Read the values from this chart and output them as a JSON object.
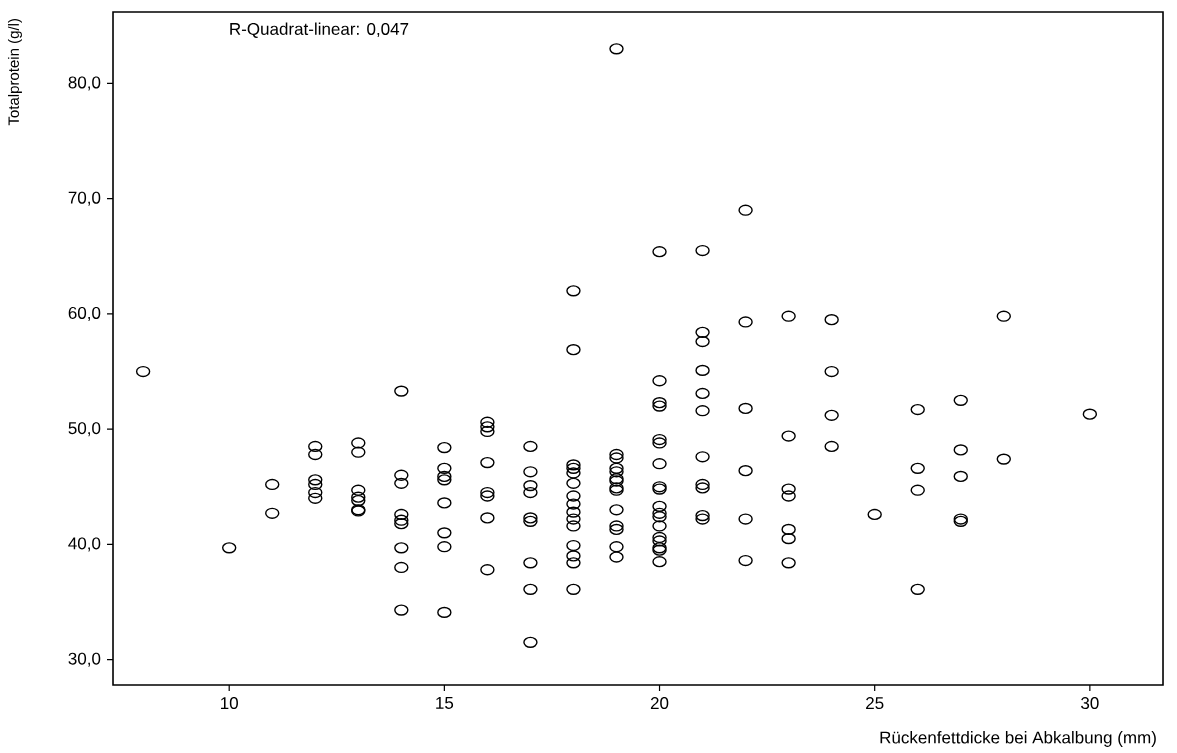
{
  "chart_data": {
    "type": "scatter",
    "xlabel": "Rückenfettdicke bei Abkalbung (mm)",
    "ylabel": "Totalprotein (g/l)",
    "annotations": [
      "R-Quadrat-linear: 0,047"
    ],
    "xlim": [
      7.3,
      31.7
    ],
    "ylim": [
      27.8,
      86.2
    ],
    "xticks": [
      10,
      15,
      20,
      25,
      30
    ],
    "yticks": [
      {
        "value": 30,
        "label": "30,0"
      },
      {
        "value": 40,
        "label": "40,0"
      },
      {
        "value": 50,
        "label": "50,0"
      },
      {
        "value": 60,
        "label": "60,0"
      },
      {
        "value": 70,
        "label": "70,0"
      },
      {
        "value": 80,
        "label": "80,0"
      }
    ],
    "marker": "circle",
    "color": "#000000",
    "x": [
      8,
      10,
      11,
      11,
      12,
      12,
      12,
      12,
      12,
      12,
      13,
      13,
      13,
      13,
      13,
      13,
      13,
      14,
      14,
      14,
      14,
      14,
      14,
      14,
      14,
      14,
      15,
      15,
      15,
      15,
      15,
      15,
      15,
      15,
      16,
      16,
      16,
      16,
      16,
      16,
      16,
      16,
      17,
      17,
      17,
      17,
      17,
      17,
      17,
      17,
      17,
      18,
      18,
      18,
      18,
      18,
      18,
      18,
      18,
      18,
      18,
      18,
      18,
      18,
      18,
      18,
      19,
      19,
      19,
      19,
      19,
      19,
      19,
      19,
      19,
      19,
      19,
      19,
      19,
      19,
      20,
      20,
      20,
      20,
      20,
      20,
      20,
      20,
      20,
      20,
      20,
      20,
      20,
      20,
      20,
      20,
      20,
      20,
      21,
      21,
      21,
      21,
      21,
      21,
      21,
      21,
      21,
      21,
      21,
      22,
      22,
      22,
      22,
      22,
      22,
      23,
      23,
      23,
      23,
      23,
      23,
      23,
      24,
      24,
      24,
      24,
      25,
      26,
      26,
      26,
      26,
      27,
      27,
      27,
      27,
      27,
      28,
      28,
      30
    ],
    "values": [
      55.0,
      39.7,
      45.2,
      42.7,
      48.5,
      47.8,
      45.6,
      45.2,
      44.5,
      44.0,
      48.8,
      48.0,
      44.7,
      44.1,
      43.8,
      43.0,
      42.9,
      53.3,
      46.0,
      45.3,
      42.6,
      42.1,
      41.8,
      39.7,
      38.0,
      34.3,
      48.4,
      46.6,
      45.9,
      45.6,
      43.6,
      41.0,
      39.8,
      34.1,
      50.6,
      50.2,
      49.8,
      47.1,
      44.5,
      44.2,
      42.3,
      37.8,
      48.5,
      46.3,
      45.1,
      44.5,
      42.3,
      42.0,
      38.4,
      36.1,
      31.5,
      62.0,
      56.9,
      46.9,
      46.6,
      46.2,
      45.3,
      44.2,
      43.5,
      42.8,
      42.2,
      41.6,
      39.9,
      39.0,
      38.4,
      36.1,
      83.0,
      47.8,
      47.5,
      46.6,
      46.3,
      45.7,
      45.5,
      44.9,
      44.7,
      43.0,
      41.6,
      41.3,
      39.8,
      38.9,
      65.4,
      54.2,
      52.3,
      52.0,
      49.1,
      48.8,
      47.0,
      45.0,
      44.8,
      43.3,
      42.7,
      42.4,
      41.6,
      40.6,
      40.3,
      39.7,
      39.5,
      38.5,
      65.5,
      58.4,
      57.6,
      55.1,
      53.1,
      51.6,
      47.6,
      45.2,
      44.9,
      42.5,
      42.2,
      69.0,
      59.3,
      51.8,
      46.4,
      42.2,
      38.6,
      59.8,
      49.4,
      44.8,
      44.2,
      41.3,
      40.5,
      38.4,
      59.5,
      55.0,
      51.2,
      48.5,
      42.6,
      51.7,
      46.6,
      44.7,
      36.1,
      52.5,
      48.2,
      45.9,
      42.2,
      42.0,
      59.8,
      47.4,
      51.3
    ]
  }
}
